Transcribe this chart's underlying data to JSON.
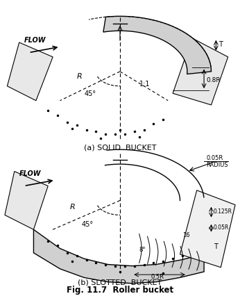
{
  "title": "Fig. 11.7  Roller bucket",
  "fig_width": 3.46,
  "fig_height": 4.36,
  "bg_color": "#ffffff",
  "line_color": "#000000",
  "label_a": "(a) SOLID  BUCKET",
  "label_b": "(b) SLOTTED  BUCKET",
  "annotations_a": {
    "flow": "FLOW",
    "R": "R",
    "angle": "45°",
    "ratio": "1:1",
    "dim": "0.8R",
    "T": "T"
  },
  "annotations_b": {
    "flow": "FLOW",
    "R": "R",
    "angle": "45°",
    "radius_label": "0.05R\nRADIUS",
    "dim1": "0.125R",
    "dim2": "0.05R",
    "num16": "16",
    "angle8": "8°",
    "dim3": "0.5R",
    "T": "T"
  }
}
